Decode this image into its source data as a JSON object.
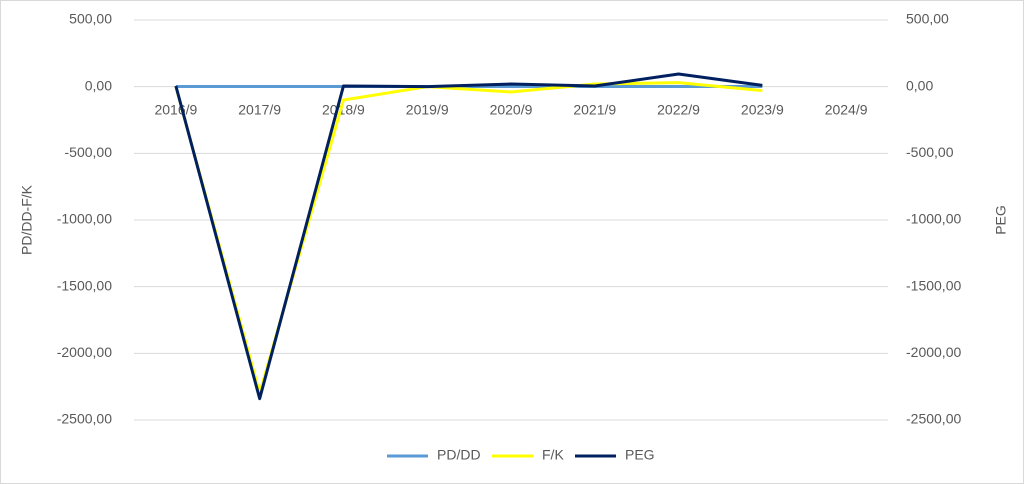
{
  "chart_data": {
    "type": "line",
    "y_label": "PD/DD-F/K",
    "y2_label": "PEG",
    "categories": [
      "2016/9",
      "2017/9",
      "2018/9",
      "2019/9",
      "2020/9",
      "2021/9",
      "2022/9",
      "2023/9",
      "2024/9"
    ],
    "series": [
      {
        "name": "PD/DD",
        "color": "#5b9bd5",
        "values": [
          1,
          1,
          1,
          1,
          1,
          1,
          1,
          1,
          null
        ]
      },
      {
        "name": "F/K",
        "color": "#ffff00",
        "values": [
          0,
          -2300,
          -100,
          0,
          -40,
          20,
          30,
          -30,
          null
        ]
      },
      {
        "name": "PEG",
        "color": "#002060",
        "axis": "y2",
        "values": [
          5,
          -2340,
          5,
          0,
          20,
          5,
          95,
          10,
          null
        ]
      }
    ],
    "ylim": [
      -2500,
      500
    ],
    "yticks": [
      {
        "value": 500,
        "label": "500,00"
      },
      {
        "value": 0,
        "label": "0,00"
      },
      {
        "value": -500,
        "label": "-500,00"
      },
      {
        "value": -1000,
        "label": "-1000,00"
      },
      {
        "value": -1500,
        "label": "-1500,00"
      },
      {
        "value": -2000,
        "label": "-2000,00"
      },
      {
        "value": -2500,
        "label": "-2500,00"
      }
    ],
    "y2lim": [
      -2500,
      500
    ],
    "y2ticks": [
      {
        "value": 500,
        "label": "500,00"
      },
      {
        "value": 0,
        "label": "0,00"
      },
      {
        "value": -500,
        "label": "-500,00"
      },
      {
        "value": -1000,
        "label": "-1000,00"
      },
      {
        "value": -1500,
        "label": "-1500,00"
      },
      {
        "value": -2000,
        "label": "-2000,00"
      },
      {
        "value": -2500,
        "label": "-2500,00"
      }
    ],
    "grid": true,
    "legend": "bottom"
  }
}
